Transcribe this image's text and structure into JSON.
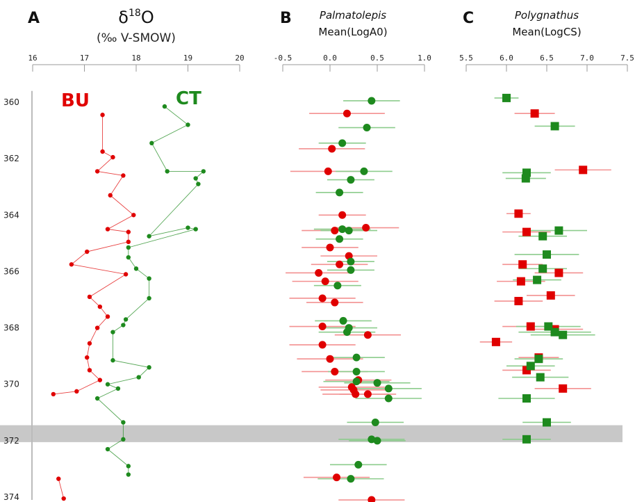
{
  "colors": {
    "bu": "#e00000",
    "ct": "#1e8a1e",
    "bu_light": "#f39090",
    "ct_light": "#8ccc8c",
    "band": "#c8c8c8",
    "axis": "#999999"
  },
  "depth_axis": {
    "ticks": [
      "360",
      "362",
      "364",
      "366",
      "368",
      "370",
      "372",
      "374"
    ],
    "range": [
      359.6,
      374.1
    ],
    "shaded_band": [
      371.45,
      372.05
    ]
  },
  "chart_data": [
    {
      "type": "line",
      "panel": "A",
      "title_main": "δ",
      "title_sup": "18",
      "title_tail": "O",
      "subtitle": "(‰ V-SMOW)",
      "xlim": [
        16,
        20
      ],
      "xticks": [
        "16",
        "17",
        "18",
        "19",
        "20"
      ],
      "series": [
        {
          "name": "BU",
          "color": "#e00000",
          "points": [
            [
              17.35,
              360.45
            ],
            [
              17.35,
              361.75
            ],
            [
              17.55,
              361.95
            ],
            [
              17.25,
              362.45
            ],
            [
              17.75,
              362.6
            ],
            [
              17.5,
              363.3
            ],
            [
              17.95,
              364.0
            ],
            [
              17.45,
              364.5
            ],
            [
              17.85,
              364.6
            ],
            [
              17.85,
              364.95
            ],
            [
              17.05,
              365.3
            ],
            [
              16.75,
              365.75
            ],
            [
              17.8,
              366.1
            ],
            [
              17.1,
              366.9
            ],
            [
              17.3,
              367.25
            ],
            [
              17.45,
              367.6
            ],
            [
              17.25,
              368.0
            ],
            [
              17.1,
              368.55
            ],
            [
              17.05,
              369.05
            ],
            [
              17.1,
              369.5
            ],
            [
              17.3,
              369.85
            ],
            [
              16.85,
              370.25
            ],
            [
              16.4,
              370.35
            ]
          ]
        },
        {
          "name": "CT",
          "color": "#1e8a1e",
          "points": [
            [
              18.55,
              360.15
            ],
            [
              19.0,
              360.8
            ],
            [
              18.3,
              361.45
            ],
            [
              18.6,
              362.45
            ],
            [
              19.3,
              362.45
            ],
            [
              19.15,
              362.7
            ],
            [
              19.2,
              362.9
            ],
            [
              18.25,
              364.75
            ],
            [
              19.0,
              364.45
            ],
            [
              19.15,
              364.5
            ],
            [
              17.85,
              365.15
            ],
            [
              17.85,
              365.5
            ],
            [
              18.0,
              365.9
            ],
            [
              18.25,
              366.25
            ],
            [
              18.25,
              366.95
            ],
            [
              17.8,
              367.7
            ],
            [
              17.75,
              367.9
            ],
            [
              17.55,
              368.15
            ],
            [
              17.55,
              369.15
            ],
            [
              18.25,
              369.4
            ],
            [
              18.05,
              369.75
            ],
            [
              17.45,
              370.0
            ],
            [
              17.65,
              370.15
            ],
            [
              17.25,
              370.5
            ],
            [
              17.75,
              371.35
            ],
            [
              17.75,
              371.95
            ],
            [
              17.45,
              372.3
            ],
            [
              17.85,
              372.9
            ],
            [
              17.85,
              373.2
            ]
          ]
        },
        {
          "name": "BU",
          "color": "#e00000",
          "points": [
            [
              16.5,
              373.35
            ],
            [
              16.6,
              374.05
            ]
          ]
        }
      ]
    },
    {
      "type": "scatter",
      "panel": "B",
      "genus": "Palmatolepis",
      "measure": "Mean(LogA0)",
      "xlim": [
        -0.5,
        1.0
      ],
      "xticks": [
        "-0.5",
        "0.0",
        "0.5",
        "1.0"
      ],
      "series": [
        {
          "name": "BU",
          "color": "#e00000",
          "points": [
            [
              0.18,
              360.4,
              0.4
            ],
            [
              0.02,
              361.65,
              0.35
            ],
            [
              -0.02,
              362.45,
              0.4
            ],
            [
              0.13,
              364.0,
              0.25
            ],
            [
              0.38,
              364.45,
              0.35
            ],
            [
              0.05,
              364.55,
              0.35
            ],
            [
              0.0,
              365.15,
              0.3
            ],
            [
              0.2,
              365.45,
              0.3
            ],
            [
              0.1,
              365.75,
              0.3
            ],
            [
              -0.12,
              366.05,
              0.35
            ],
            [
              -0.05,
              366.35,
              0.35
            ],
            [
              -0.08,
              366.95,
              0.35
            ],
            [
              0.05,
              367.1,
              0.3
            ],
            [
              -0.08,
              367.95,
              0.35
            ],
            [
              0.4,
              368.25,
              0.35
            ],
            [
              -0.08,
              368.6,
              0.35
            ],
            [
              0.0,
              369.1,
              0.35
            ],
            [
              0.05,
              369.55,
              0.35
            ],
            [
              0.3,
              369.85,
              0.35
            ],
            [
              0.23,
              370.1,
              0.35
            ],
            [
              0.25,
              370.2,
              0.35
            ],
            [
              0.27,
              370.35,
              0.35
            ],
            [
              0.4,
              370.35,
              0.3
            ],
            [
              0.07,
              373.3,
              0.35
            ],
            [
              0.44,
              374.1,
              0.35
            ]
          ]
        },
        {
          "name": "CT",
          "color": "#1e8a1e",
          "points": [
            [
              0.44,
              359.95,
              0.3
            ],
            [
              0.39,
              360.9,
              0.3
            ],
            [
              0.13,
              361.45,
              0.25
            ],
            [
              0.36,
              362.45,
              0.3
            ],
            [
              0.22,
              362.75,
              0.25
            ],
            [
              0.1,
              363.2,
              0.25
            ],
            [
              0.13,
              364.5,
              0.3
            ],
            [
              0.2,
              364.55,
              0.3
            ],
            [
              0.1,
              364.85,
              0.25
            ],
            [
              0.22,
              365.65,
              0.25
            ],
            [
              0.22,
              365.95,
              0.25
            ],
            [
              0.08,
              366.5,
              0.25
            ],
            [
              0.14,
              367.75,
              0.3
            ],
            [
              0.2,
              368.0,
              0.3
            ],
            [
              0.18,
              368.15,
              0.3
            ],
            [
              0.28,
              369.05,
              0.3
            ],
            [
              0.28,
              369.55,
              0.3
            ],
            [
              0.28,
              369.9,
              0.35
            ],
            [
              0.5,
              369.95,
              0.35
            ],
            [
              0.62,
              370.15,
              0.35
            ],
            [
              0.62,
              370.5,
              0.35
            ],
            [
              0.48,
              371.35,
              0.3
            ],
            [
              0.44,
              371.95,
              0.35
            ],
            [
              0.5,
              372.0,
              0.3
            ],
            [
              0.3,
              372.85,
              0.3
            ],
            [
              0.22,
              373.35,
              0.35
            ]
          ]
        }
      ]
    },
    {
      "type": "scatter",
      "panel": "C",
      "genus": "Polygnathus",
      "measure": "Mean(LogCS)",
      "xlim": [
        5.5,
        7.5
      ],
      "xticks": [
        "5.5",
        "6.0",
        "6.5",
        "7.0",
        "7.5"
      ],
      "series": [
        {
          "name": "BU",
          "color": "#e00000",
          "points": [
            [
              6.35,
              360.4,
              0.25
            ],
            [
              6.95,
              362.4,
              0.35
            ],
            [
              6.15,
              363.95,
              0.15
            ],
            [
              6.25,
              364.6,
              0.3
            ],
            [
              6.2,
              365.75,
              0.25
            ],
            [
              6.65,
              366.05,
              0.3
            ],
            [
              6.18,
              366.35,
              0.3
            ],
            [
              6.55,
              366.85,
              0.3
            ],
            [
              6.15,
              367.05,
              0.3
            ],
            [
              6.3,
              367.95,
              0.35
            ],
            [
              6.6,
              368.05,
              0.35
            ],
            [
              5.87,
              368.5,
              0.2
            ],
            [
              6.4,
              369.05,
              0.25
            ],
            [
              6.25,
              369.5,
              0.3
            ],
            [
              6.7,
              370.15,
              0.35
            ]
          ]
        },
        {
          "name": "CT",
          "color": "#1e8a1e",
          "points": [
            [
              6.0,
              359.85,
              0.15
            ],
            [
              6.6,
              360.85,
              0.25
            ],
            [
              6.25,
              362.5,
              0.3
            ],
            [
              6.24,
              362.7,
              0.25
            ],
            [
              6.65,
              364.55,
              0.35
            ],
            [
              6.45,
              364.75,
              0.3
            ],
            [
              6.5,
              365.4,
              0.4
            ],
            [
              6.45,
              365.9,
              0.3
            ],
            [
              6.38,
              366.3,
              0.3
            ],
            [
              6.52,
              367.95,
              0.4
            ],
            [
              6.6,
              368.15,
              0.45
            ],
            [
              6.7,
              368.25,
              0.4
            ],
            [
              6.4,
              369.1,
              0.3
            ],
            [
              6.3,
              369.35,
              0.3
            ],
            [
              6.42,
              369.75,
              0.35
            ],
            [
              6.25,
              370.5,
              0.35
            ],
            [
              6.5,
              371.35,
              0.3
            ],
            [
              6.25,
              371.95,
              0.3
            ]
          ]
        }
      ]
    }
  ]
}
